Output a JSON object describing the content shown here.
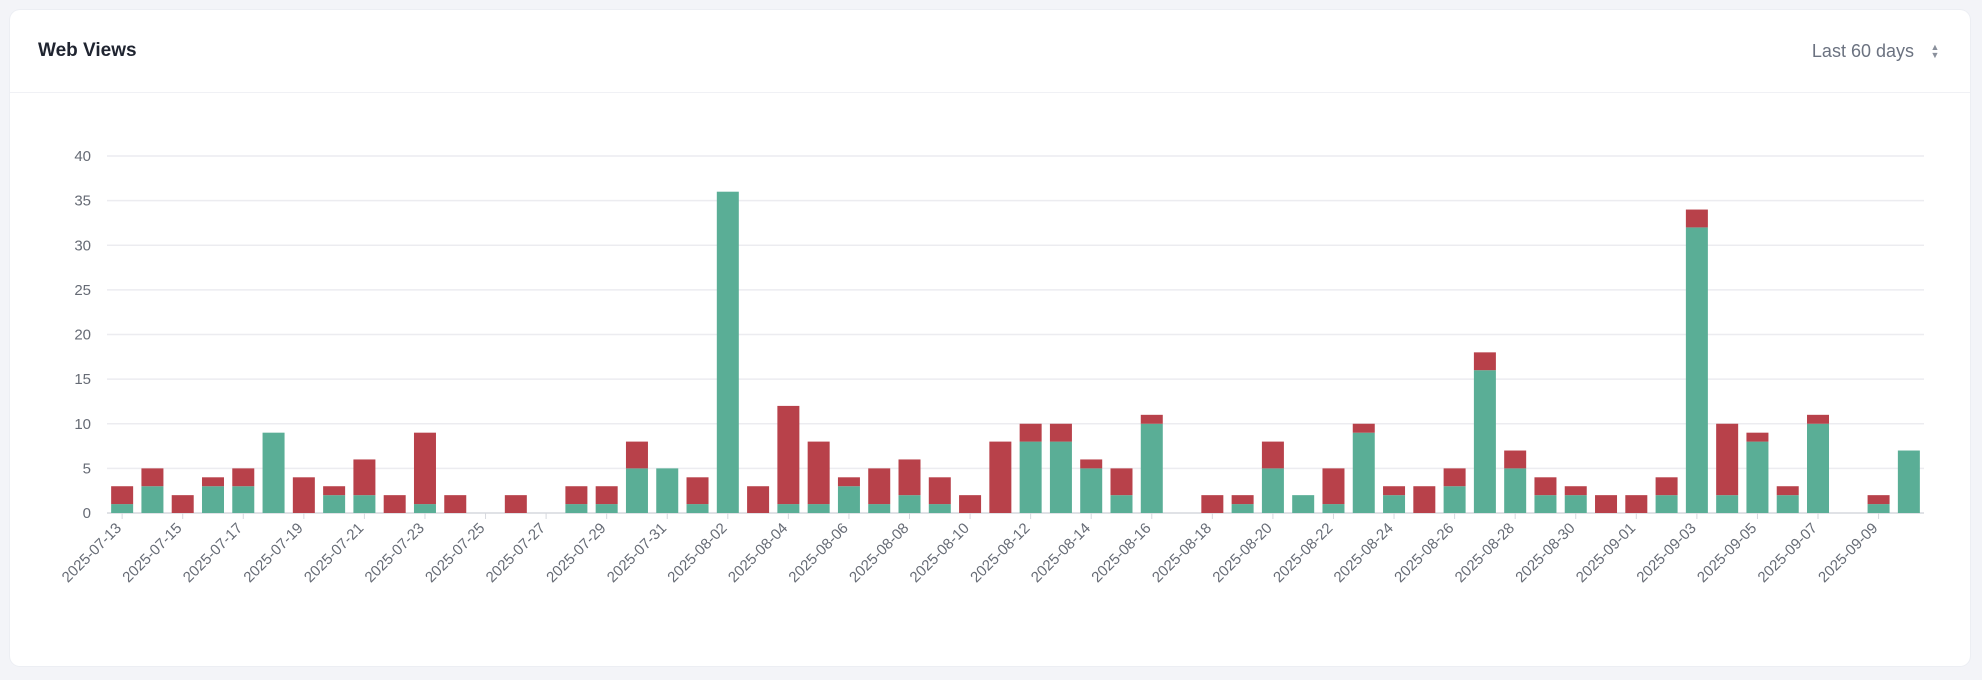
{
  "header": {
    "title": "Web Views"
  },
  "range_select": {
    "value": "Last 60 days",
    "icon": "chevron-up-down-icon"
  },
  "colors": {
    "series_green": "#5aae96",
    "series_red": "#b8414a",
    "grid": "#ececf0",
    "axis": "#d6d8de"
  },
  "chart_data": {
    "type": "bar",
    "stacked": true,
    "title": "",
    "xlabel": "",
    "ylabel": "",
    "ylim": [
      0,
      40
    ],
    "yticks": [
      0,
      5,
      10,
      15,
      20,
      25,
      30,
      35,
      40
    ],
    "grid": true,
    "legend": "none",
    "categories": [
      "2025-07-13",
      "2025-07-14",
      "2025-07-15",
      "2025-07-16",
      "2025-07-17",
      "2025-07-18",
      "2025-07-19",
      "2025-07-20",
      "2025-07-21",
      "2025-07-22",
      "2025-07-23",
      "2025-07-24",
      "2025-07-25",
      "2025-07-26",
      "2025-07-27",
      "2025-07-28",
      "2025-07-29",
      "2025-07-30",
      "2025-07-31",
      "2025-08-01",
      "2025-08-02",
      "2025-08-03",
      "2025-08-04",
      "2025-08-05",
      "2025-08-06",
      "2025-08-07",
      "2025-08-08",
      "2025-08-09",
      "2025-08-10",
      "2025-08-11",
      "2025-08-12",
      "2025-08-13",
      "2025-08-14",
      "2025-08-15",
      "2025-08-16",
      "2025-08-17",
      "2025-08-18",
      "2025-08-19",
      "2025-08-20",
      "2025-08-21",
      "2025-08-22",
      "2025-08-23",
      "2025-08-24",
      "2025-08-25",
      "2025-08-26",
      "2025-08-27",
      "2025-08-28",
      "2025-08-29",
      "2025-08-30",
      "2025-08-31",
      "2025-09-01",
      "2025-09-02",
      "2025-09-03",
      "2025-09-04",
      "2025-09-05",
      "2025-09-06",
      "2025-09-07",
      "2025-09-08",
      "2025-09-09",
      "2025-09-10"
    ],
    "tick_labels": [
      "2025-07-13",
      "2025-07-15",
      "2025-07-17",
      "2025-07-19",
      "2025-07-21",
      "2025-07-23",
      "2025-07-25",
      "2025-07-27",
      "2025-07-29",
      "2025-07-31",
      "2025-08-02",
      "2025-08-04",
      "2025-08-06",
      "2025-08-08",
      "2025-08-10",
      "2025-08-12",
      "2025-08-14",
      "2025-08-16",
      "2025-08-18",
      "2025-08-20",
      "2025-08-22",
      "2025-08-24",
      "2025-08-26",
      "2025-08-28",
      "2025-08-30",
      "2025-09-01",
      "2025-09-03",
      "2025-09-05",
      "2025-09-07",
      "2025-09-09"
    ],
    "series": [
      {
        "color": "#5aae96",
        "values": [
          1,
          3,
          0,
          3,
          3,
          9,
          0,
          2,
          2,
          0,
          1,
          0,
          0,
          0,
          0,
          1,
          1,
          5,
          5,
          1,
          36,
          0,
          1,
          1,
          3,
          1,
          2,
          1,
          0,
          0,
          8,
          8,
          5,
          2,
          10,
          0,
          0,
          1,
          5,
          2,
          1,
          9,
          2,
          0,
          3,
          16,
          5,
          2,
          2,
          0,
          0,
          2,
          32,
          2,
          8,
          2,
          10,
          0,
          1,
          7
        ]
      },
      {
        "color": "#b8414a",
        "values": [
          2,
          2,
          2,
          1,
          2,
          0,
          4,
          1,
          4,
          2,
          8,
          2,
          0,
          2,
          0,
          2,
          2,
          3,
          0,
          3,
          0,
          3,
          11,
          7,
          1,
          4,
          4,
          3,
          2,
          8,
          2,
          2,
          1,
          3,
          1,
          0,
          2,
          1,
          3,
          0,
          4,
          1,
          1,
          3,
          2,
          2,
          2,
          2,
          1,
          2,
          2,
          2,
          2,
          8,
          1,
          1,
          1,
          0,
          1,
          0
        ]
      }
    ]
  }
}
